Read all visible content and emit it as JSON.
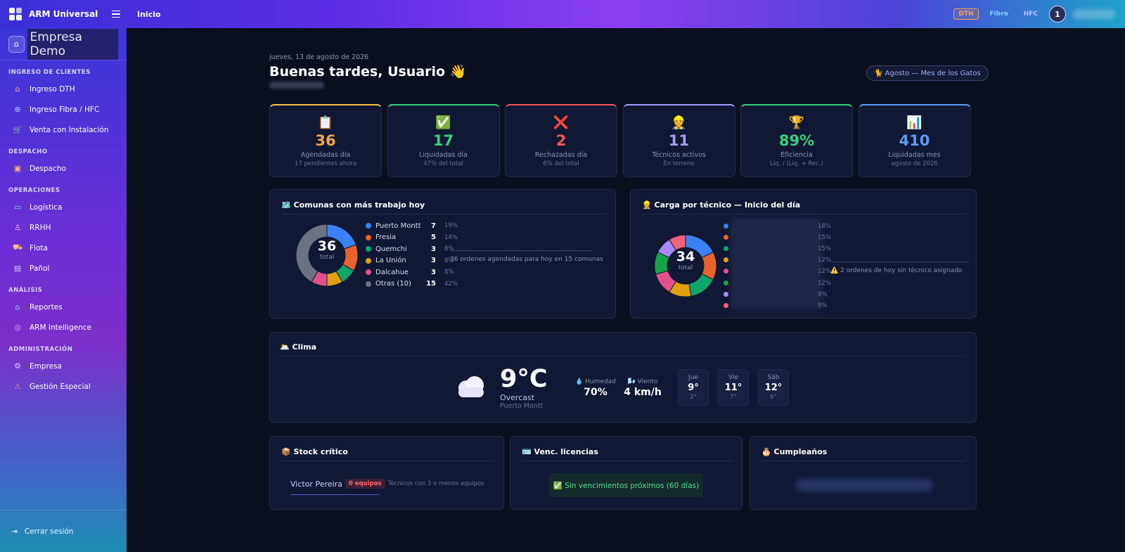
{
  "topbar": {
    "brand": "ARM Universal",
    "title": "Inicio",
    "chips": [
      "DTH",
      "Fibra",
      "HFC"
    ],
    "avatar": "1"
  },
  "sidebar": {
    "company": "Empresa Demo",
    "sections": [
      {
        "label": "INGRESO DE CLIENTES",
        "items": [
          {
            "label": "Ingreso DTH",
            "icon": "house-icon"
          },
          {
            "label": "Ingreso Fibra / HFC",
            "icon": "globe-icon"
          },
          {
            "label": "Venta con Instalación",
            "icon": "cart-icon"
          }
        ]
      },
      {
        "label": "DESPACHO",
        "items": [
          {
            "label": "Despacho",
            "icon": "calendar-icon"
          }
        ]
      },
      {
        "label": "OPERACIONES",
        "items": [
          {
            "label": "Logística",
            "icon": "truck-icon"
          },
          {
            "label": "RRHH",
            "icon": "person-icon"
          },
          {
            "label": "Flota",
            "icon": "van-icon"
          },
          {
            "label": "Pañol",
            "icon": "clipboard-icon"
          }
        ]
      },
      {
        "label": "ANÁLISIS",
        "items": [
          {
            "label": "Reportes",
            "icon": "chart-icon"
          },
          {
            "label": "ARM Intelligence",
            "icon": "brain-icon"
          }
        ]
      },
      {
        "label": "ADMINISTRACIÓN",
        "items": [
          {
            "label": "Empresa",
            "icon": "gear-icon"
          },
          {
            "label": "Gestión Especial",
            "icon": "alert-icon"
          }
        ]
      }
    ],
    "logout": "Cerrar sesión"
  },
  "header": {
    "date": "jueves, 13 de agosto de 2026",
    "greeting": "Buenas tardes, Usuario",
    "greeting_emoji": "👋",
    "month_badge": "🐈 Agosto — Mes de los Gatos"
  },
  "stats": [
    {
      "emoji": "📋",
      "value": "36",
      "label": "Agendadas día",
      "sub": "17 pendientes ahora",
      "color": "#f7a34b",
      "top": "#f7c14b"
    },
    {
      "emoji": "✅",
      "value": "17",
      "label": "Liquidadas día",
      "sub": "47% del total",
      "color": "#34d27c",
      "top": "#34d27c"
    },
    {
      "emoji": "❌",
      "value": "2",
      "label": "Rechazadas día",
      "sub": "6% del total",
      "color": "#f25656",
      "top": "#f25656"
    },
    {
      "emoji": "👷",
      "value": "11",
      "label": "Técnicos activos",
      "sub": "En terreno",
      "color": "#a99bff",
      "top": "#a99bff"
    },
    {
      "emoji": "🏆",
      "value": "89%",
      "label": "Eficiencia",
      "sub": "Liq. / (Liq. + Rec.)",
      "color": "#34d27c",
      "top": "#34d27c"
    },
    {
      "emoji": "📊",
      "value": "410",
      "label": "Liquidadas mes",
      "sub": "agosto de 2026",
      "color": "#5b9cf5",
      "top": "#5b9cf5"
    }
  ],
  "comunas": {
    "title": "🗺️ Comunas con más trabajo hoy",
    "total": "36",
    "total_label": "total",
    "note": "36 ordenes agendadas para hoy en 15 comunas",
    "items": [
      {
        "name": "Puerto Montt",
        "count": 7,
        "pct": "19%",
        "color": "#3b82f6"
      },
      {
        "name": "Fresia",
        "count": 5,
        "pct": "14%",
        "color": "#e8622c"
      },
      {
        "name": "Quemchi",
        "count": 3,
        "pct": "8%",
        "color": "#10a66b"
      },
      {
        "name": "La Unión",
        "count": 3,
        "pct": "8%",
        "color": "#e0a00e"
      },
      {
        "name": "Dalcahue",
        "count": 3,
        "pct": "8%",
        "color": "#e2508a"
      },
      {
        "name": "Otras (10)",
        "count": 15,
        "pct": "42%",
        "color": "#6b7280"
      }
    ]
  },
  "carga": {
    "title": "👷 Carga por técnico — Inicio del día",
    "total": "34",
    "total_label": "total",
    "note": "2 ordenes de hoy sin técnico asignado",
    "note_icon": "⚠️",
    "items": [
      {
        "pct": "18%",
        "share": 18,
        "color": "#3b82f6"
      },
      {
        "pct": "15%",
        "share": 15,
        "color": "#e8622c"
      },
      {
        "pct": "15%",
        "share": 15,
        "color": "#10a66b"
      },
      {
        "pct": "12%",
        "share": 12,
        "color": "#e0a00e"
      },
      {
        "pct": "12%",
        "share": 12,
        "color": "#e2508a"
      },
      {
        "pct": "12%",
        "share": 12,
        "color": "#16a34a"
      },
      {
        "pct": "9%",
        "share": 9,
        "color": "#a78bfa"
      },
      {
        "pct": "9%",
        "share": 9,
        "color": "#f0627a"
      }
    ]
  },
  "clima": {
    "title": "🌥️ Clima",
    "temp": "9°C",
    "desc": "Overcast",
    "location": "Puerto Montt",
    "humidity_label": "💧 Humedad",
    "humidity": "70%",
    "wind_label": "🌬️ Viento",
    "wind": "4 km/h",
    "forecast": [
      {
        "day": "Jue",
        "hi": "9°",
        "lo": "2°"
      },
      {
        "day": "Vie",
        "hi": "11°",
        "lo": "7°"
      },
      {
        "day": "Sáb",
        "hi": "12°",
        "lo": "6°"
      }
    ]
  },
  "stock": {
    "title": "📦 Stock crítico",
    "name": "Victor Pereira",
    "badge": "0 equipos",
    "note": "Técnicos con 3 o menos equipos"
  },
  "licencias": {
    "title": "🪪 Venc. licencias",
    "message": "✅ Sin vencimientos próximos (60 días)"
  },
  "cumple": {
    "title": "🎂 Cumpleaños"
  }
}
